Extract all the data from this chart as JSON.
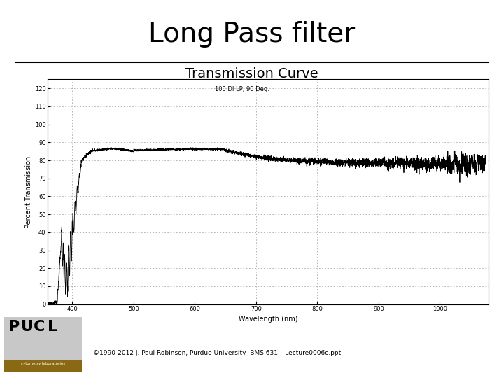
{
  "title": "Long Pass filter",
  "subtitle": "Transmission Curve",
  "inner_label": "100 DI LP, 90 Deg.",
  "ylabel": "Percent Transmission",
  "xlabel": "Wavelength (nm)",
  "xlim": [
    360,
    1080
  ],
  "ylim": [
    0,
    125
  ],
  "yticks": [
    0,
    10,
    20,
    30,
    40,
    50,
    60,
    70,
    80,
    90,
    100,
    110,
    120
  ],
  "xticks": [
    400,
    500,
    600,
    700,
    800,
    900,
    1000
  ],
  "copyright": "©1990-2012 J. Paul Robinson, Purdue University  BMS 631 – Lecture0006c.ppt",
  "title_fontsize": 28,
  "subtitle_fontsize": 14,
  "inner_label_fontsize": 6,
  "axis_label_fontsize": 7,
  "tick_fontsize": 6,
  "bg_color": "#ffffff",
  "grid_color": "#aaaaaa",
  "curve_color": "#000000"
}
